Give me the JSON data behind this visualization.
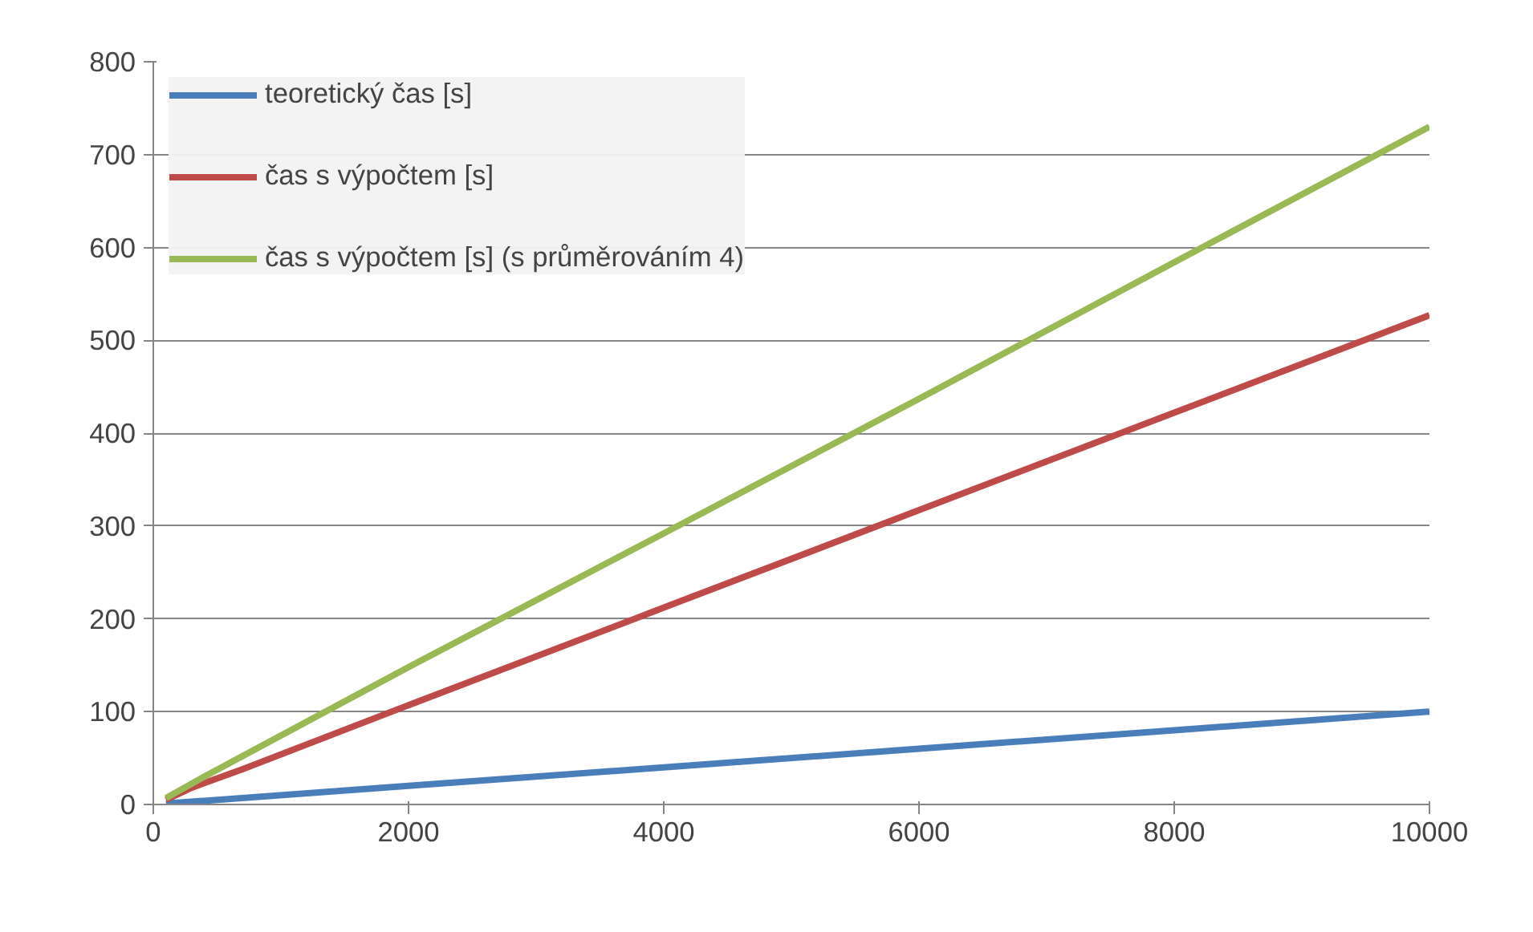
{
  "chart_data": {
    "type": "line",
    "xlim": [
      0,
      10000
    ],
    "xticks": [
      0,
      2000,
      4000,
      6000,
      8000,
      10000
    ],
    "ylim": [
      0,
      800
    ],
    "yticks": [
      0,
      100,
      200,
      300,
      400,
      500,
      600,
      700,
      800
    ],
    "grid": "y",
    "legend": "top left",
    "marker": "none",
    "line_style": "solid",
    "series": [
      {
        "name": "teoretický čas [s]",
        "color": "#4a7ebb",
        "x": [
          100,
          2000,
          4000,
          6000,
          8000,
          10000
        ],
        "values": [
          1,
          20,
          40,
          60,
          80,
          100
        ]
      },
      {
        "name": "čas s výpočtem [s]",
        "color": "#be4b48",
        "x": [
          100,
          300,
          700,
          2000,
          4000,
          6000,
          8000,
          10000
        ],
        "values": [
          5,
          18,
          38,
          107,
          212,
          317,
          422,
          527
        ]
      },
      {
        "name": "čas s výpočtem [s] (s průměrováním 4)",
        "color": "#98b954",
        "x": [
          100,
          400,
          2000,
          4000,
          6000,
          8000,
          10000
        ],
        "values": [
          7,
          30,
          148,
          292,
          437,
          584,
          730
        ]
      }
    ]
  }
}
